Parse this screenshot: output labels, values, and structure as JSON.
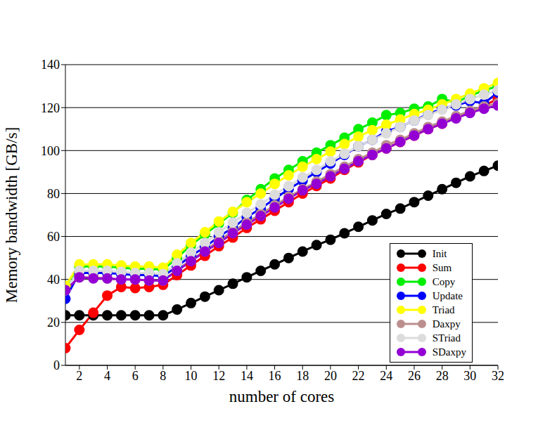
{
  "chart_data": {
    "type": "line",
    "x_label": "number of cores",
    "y_label": "Memory bandwidth [GB/s]",
    "x": [
      1,
      2,
      3,
      4,
      5,
      6,
      7,
      8,
      9,
      10,
      11,
      12,
      13,
      14,
      15,
      16,
      17,
      18,
      19,
      20,
      21,
      22,
      23,
      24,
      25,
      26,
      27,
      28,
      29,
      30,
      31,
      32
    ],
    "xlim": [
      1,
      32
    ],
    "xticks": [
      2,
      4,
      6,
      8,
      10,
      12,
      14,
      16,
      18,
      20,
      22,
      24,
      26,
      28,
      30,
      32
    ],
    "ylim": [
      0,
      140
    ],
    "yticks": [
      0,
      20,
      40,
      60,
      80,
      100,
      120,
      140
    ],
    "grid": true,
    "legend": "lower right",
    "marker": "circle",
    "series": [
      {
        "name": "Init",
        "color": "#000000",
        "values": [
          23.3,
          23.3,
          23.3,
          23.3,
          23.3,
          23.3,
          23.3,
          23.3,
          26,
          29,
          32,
          35,
          38,
          41,
          44,
          47,
          50,
          53,
          56,
          58.5,
          61.5,
          64.5,
          67.5,
          70.5,
          73,
          76,
          79,
          82,
          85,
          88,
          90.5,
          93
        ]
      },
      {
        "name": "Sum",
        "color": "#ff0000",
        "values": [
          8,
          16.5,
          24.5,
          32.5,
          36.5,
          36,
          36.5,
          37.5,
          42,
          46.5,
          51,
          55.5,
          59.5,
          64,
          68,
          72,
          76,
          80,
          83.5,
          87,
          91,
          94.5,
          98,
          101,
          104,
          107,
          110,
          112.5,
          115.5,
          118,
          121,
          124
        ]
      },
      {
        "name": "Copy",
        "color": "#00ee00",
        "values": [
          37,
          46,
          46,
          46,
          45.5,
          45,
          45,
          44.5,
          50,
          56,
          61,
          66,
          71,
          77,
          82,
          87,
          91,
          95,
          99,
          102.5,
          106,
          110,
          113,
          116.5,
          117.5,
          119.5,
          120.5,
          124,
          122.5,
          125.5,
          128,
          130
        ]
      },
      {
        "name": "Update",
        "color": "#0000ff",
        "values": [
          31,
          43,
          43,
          43,
          42.5,
          42,
          42,
          41.5,
          46,
          51,
          55,
          60,
          64,
          69,
          73,
          77.5,
          82,
          86,
          90,
          94,
          98,
          102,
          105,
          109,
          111,
          114,
          117,
          119.5,
          121,
          123,
          122,
          127
        ]
      },
      {
        "name": "Triad",
        "color": "#ffff00",
        "values": [
          37,
          47,
          47,
          47,
          46.5,
          46,
          46,
          45.5,
          51.5,
          57,
          62,
          67,
          71.5,
          76,
          80,
          84.5,
          88.5,
          92.5,
          96,
          99.5,
          103,
          106.5,
          109.5,
          112,
          114.5,
          117,
          119,
          121.5,
          124,
          126.5,
          129,
          131.5
        ]
      },
      {
        "name": "Daxpy",
        "color": "#bc8f8f",
        "values": [
          35,
          41,
          41,
          40.5,
          40,
          40,
          39.5,
          39.5,
          44.5,
          49,
          53.5,
          58,
          62.5,
          66.5,
          70.5,
          74.5,
          78.5,
          82,
          85.5,
          89,
          92.5,
          96,
          99,
          102.5,
          105,
          108,
          111,
          113.5,
          116,
          118.5,
          120.5,
          122
        ]
      },
      {
        "name": "STriad",
        "color": "#dcdcdc",
        "values": [
          35,
          44,
          44,
          44,
          43.5,
          43,
          43,
          42.5,
          47.5,
          52.5,
          57,
          62,
          66.5,
          71,
          75,
          79.5,
          83.5,
          87.5,
          91,
          95,
          98.5,
          102,
          105,
          108,
          111,
          114,
          116.5,
          119,
          121.5,
          124,
          126,
          128
        ]
      },
      {
        "name": "SDaxpy",
        "color": "#9400d3",
        "values": [
          35,
          41,
          40.5,
          40.5,
          40,
          40,
          39.5,
          39.5,
          44,
          48.5,
          53,
          57,
          61.5,
          65.5,
          69.5,
          73.5,
          77.5,
          81.5,
          84.5,
          88,
          91.5,
          95,
          98,
          101,
          104,
          107,
          110,
          112.5,
          115,
          117.5,
          119.5,
          121
        ]
      }
    ]
  }
}
